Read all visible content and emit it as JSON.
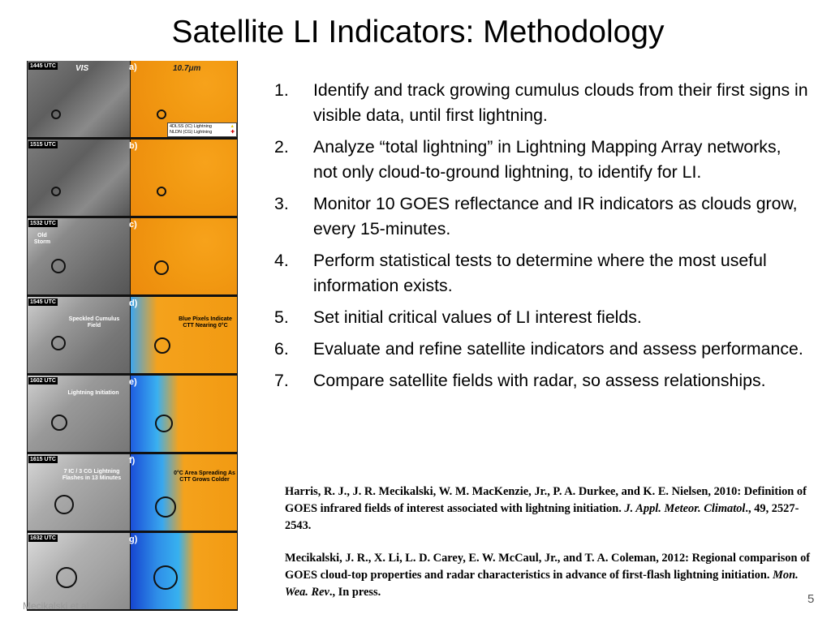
{
  "slide": {
    "title": "Satellite LI Indicators: Methodology",
    "page_number": "5",
    "footer": "Mecikalski et al"
  },
  "figure": {
    "header_vis": "VIS",
    "header_ir": "10.7μm",
    "legend": [
      {
        "label": "4DLSS (IC) Lightning",
        "symbol": "▲",
        "color": "#e8c400"
      },
      {
        "label": "NLDN (CG) Lightning",
        "symbol": "✚",
        "color": "#d00000"
      }
    ],
    "panels": [
      {
        "time": "1445 UTC",
        "letter": "a)"
      },
      {
        "time": "1515 UTC",
        "letter": "b)"
      },
      {
        "time": "1532 UTC",
        "letter": "c)"
      },
      {
        "time": "1545 UTC",
        "letter": "d)"
      },
      {
        "time": "1602 UTC",
        "letter": "e)"
      },
      {
        "time": "1615 UTC",
        "letter": "f)"
      },
      {
        "time": "1632 UTC",
        "letter": "g)"
      }
    ],
    "annotations": {
      "old_storm": "Old Storm",
      "speckled_cumulus": "Speckled Cumulus Field",
      "blue_pixels": "Blue Pixels Indicate CTT Nearing 0°C",
      "lightning_initiation": "Lightning Initiation",
      "flashes": "7 IC / 3 CG Lightning Flashes in 13 Minutes",
      "area_spreading": "0°C Area Spreading As CTT Grows Colder"
    }
  },
  "steps": [
    {
      "num": "1.",
      "text": "Identify and track growing cumulus clouds from their first signs in visible data, until first lightning."
    },
    {
      "num": "2.",
      "text": "Analyze “total lightning” in Lightning Mapping Array networks, not only cloud-to-ground lightning, to identify for LI."
    },
    {
      "num": "3.",
      "text": "Monitor 10 GOES reflectance and IR indicators as clouds grow, every 15-minutes."
    },
    {
      "num": "4.",
      "text": "Perform statistical tests to determine where the most useful information exists."
    },
    {
      "num": "5.",
      "text": "Set initial critical values of LI interest fields."
    },
    {
      "num": "6.",
      "text": "Evaluate and refine satellite indicators and assess performance."
    },
    {
      "num": "7.",
      "text": "Compare satellite fields with radar, so assess relationships."
    }
  ],
  "references": [
    {
      "text": "Harris, R. J., J. R. Mecikalski, W. M. MacKenzie, Jr., P. A. Durkee, and K. E. Nielsen, 2010: Definition of GOES infrared fields of interest associated with lightning initiation. ",
      "journal": "J. Appl. Meteor. Climatol",
      "tail": "., 49, 2527-2543."
    },
    {
      "text": "Mecikalski, J. R., X. Li, L. D. Carey, E. W. McCaul, Jr., and T. A. Coleman, 2012: Regional comparison of GOES cloud-top properties and radar characteristics in advance of first-flash lightning initiation. ",
      "journal": "Mon. Wea. Rev",
      "tail": "., In press."
    }
  ]
}
